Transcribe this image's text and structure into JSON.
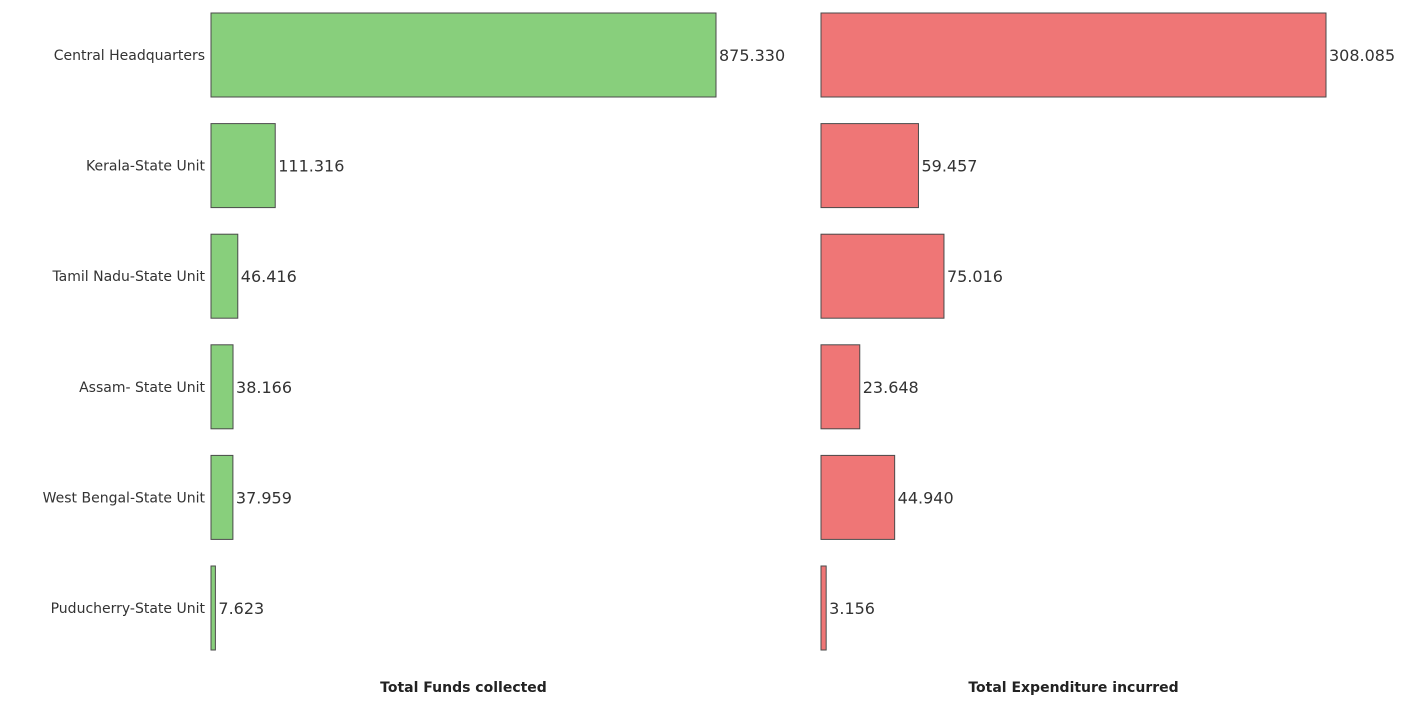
{
  "chart_data": {
    "type": "bar",
    "orientation": "horizontal",
    "categories": [
      "Central Headquarters",
      "Kerala-State Unit",
      "Tamil Nadu-State Unit",
      "Assam- State Unit",
      "West Bengal-State Unit",
      "Puducherry-State Unit"
    ],
    "panels": [
      {
        "name": "Total Funds collected",
        "xlabel": "Total Funds collected",
        "color": "#88cf7c",
        "stroke": "#4a4a4a",
        "values": [
          875.33,
          111.316,
          46.416,
          38.166,
          37.959,
          7.623
        ],
        "value_labels": [
          "875.330",
          "111.316",
          "46.416",
          "38.166",
          "37.959",
          "7.623"
        ],
        "xlim": [
          0,
          875.33
        ]
      },
      {
        "name": "Total Expenditure incurred",
        "xlabel": "Total Expenditure incurred",
        "color": "#ef7676",
        "stroke": "#4a4a4a",
        "values": [
          308.085,
          59.457,
          75.016,
          23.648,
          44.94,
          3.156
        ],
        "value_labels": [
          "308.085",
          "59.457",
          "75.016",
          "23.648",
          "44.940",
          "3.156"
        ],
        "xlim": [
          0,
          308.085
        ]
      }
    ],
    "grid": false,
    "legend": "none"
  }
}
